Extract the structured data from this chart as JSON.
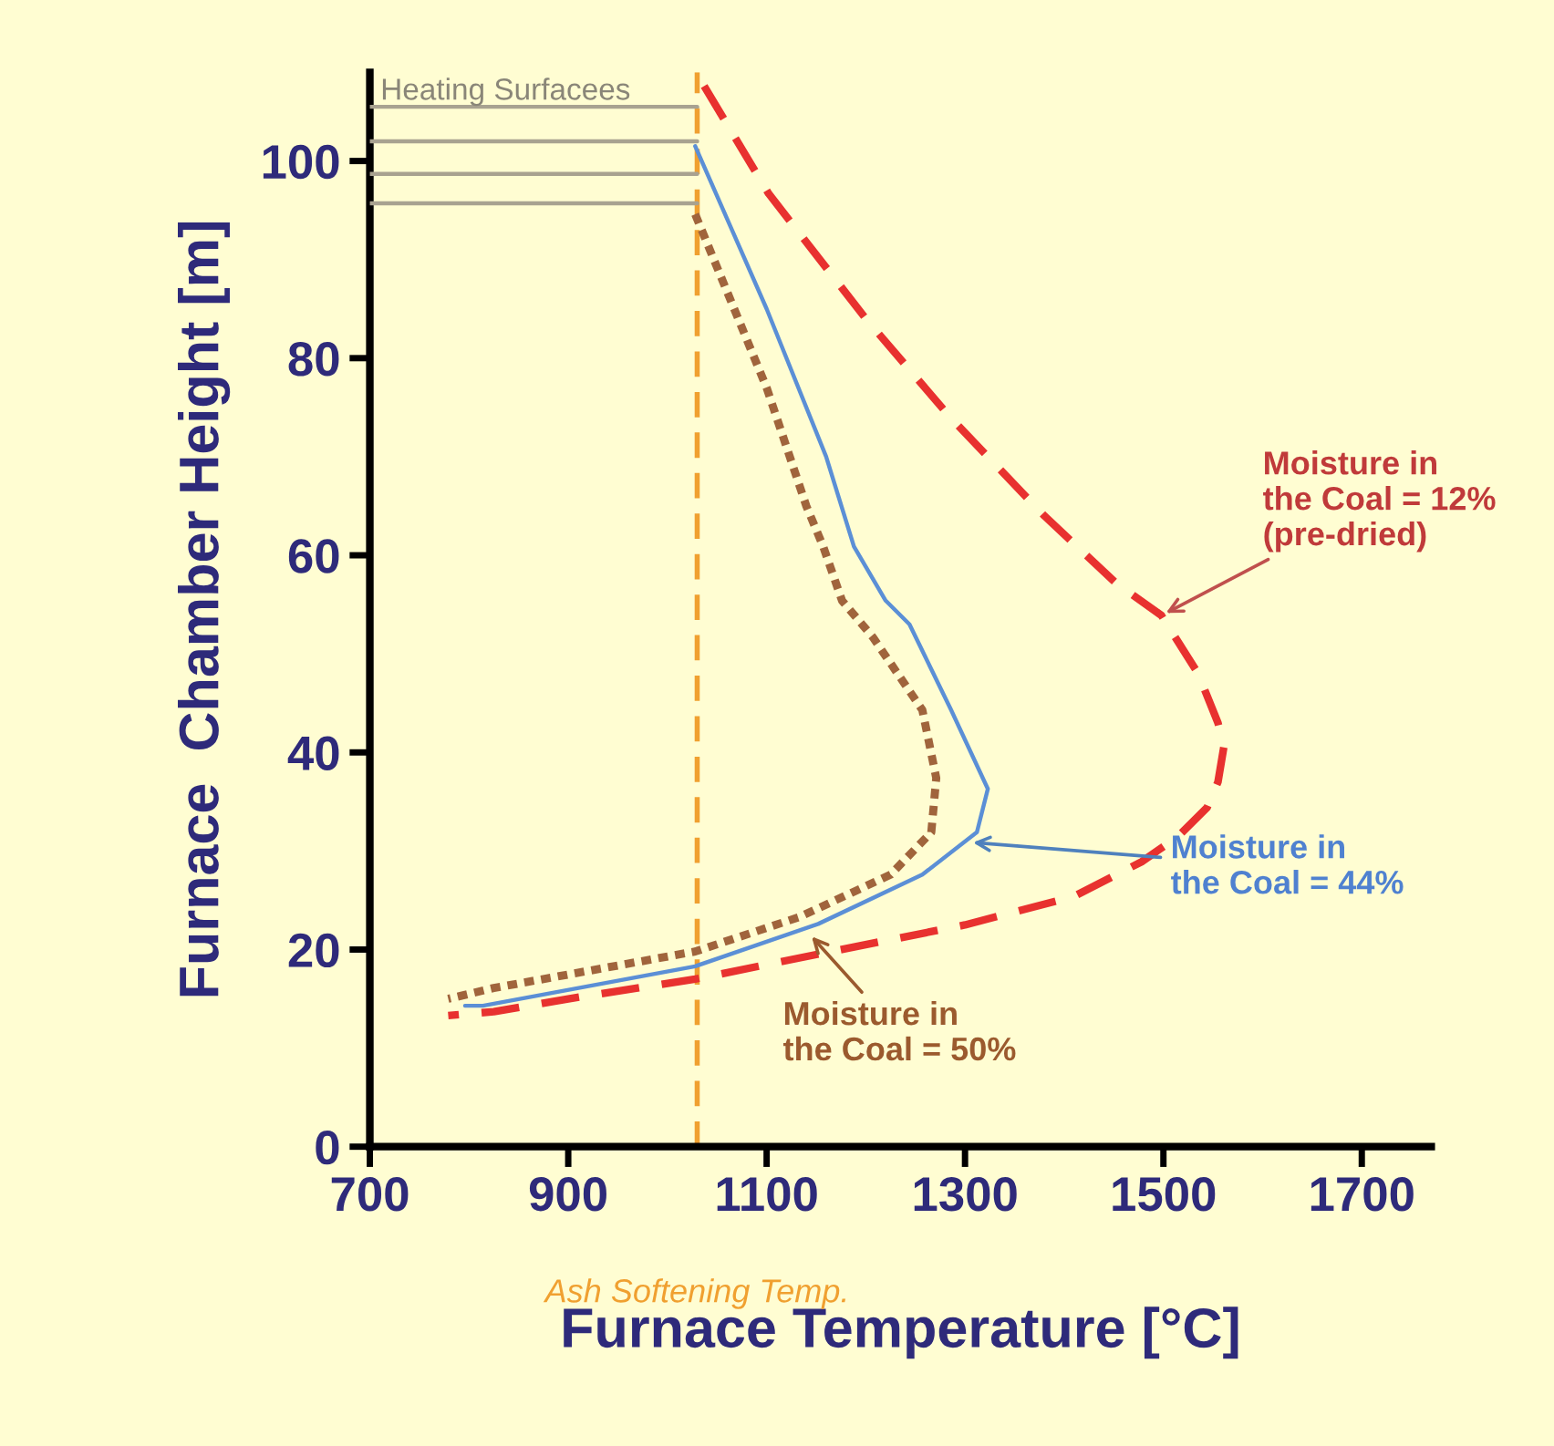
{
  "chart_data": {
    "type": "line",
    "xlabel": "Furnace Temperature [°C]",
    "ylabel": "Furnace  Chamber Height [m]",
    "xlim": [
      700,
      1770
    ],
    "ylim": [
      0,
      109
    ],
    "xticks": [
      700,
      900,
      1100,
      1300,
      1500,
      1700
    ],
    "yticks": [
      0,
      20,
      40,
      60,
      80,
      100
    ],
    "grid": false,
    "legend": false,
    "series": [
      {
        "color": "#a8a290",
        "line_style": "solid",
        "x": [
          700,
          1030
        ],
        "values": [
          105.5,
          105.5
        ]
      },
      {
        "color": "#a8a290",
        "line_style": "solid",
        "x": [
          700,
          1030
        ],
        "values": [
          102,
          102
        ]
      },
      {
        "color": "#a8a290",
        "line_style": "solid",
        "x": [
          700,
          1030
        ],
        "values": [
          98.7,
          98.7
        ]
      },
      {
        "color": "#a8a290",
        "line_style": "solid",
        "x": [
          700,
          1030
        ],
        "values": [
          95.7,
          95.7
        ]
      },
      {
        "color": "#e8312f",
        "line_style": "dashed",
        "x": [
          1037,
          1102,
          1200,
          1286,
          1380,
          1452,
          1498,
          1535,
          1555,
          1561,
          1555,
          1544,
          1515,
          1478,
          1410,
          1300,
          1165,
          1028,
          900,
          825,
          779
        ],
        "values": [
          107.6,
          96.7,
          84,
          73.9,
          64,
          57.2,
          53.9,
          48,
          43,
          40.6,
          37,
          34.4,
          31.5,
          28.9,
          25.4,
          22.5,
          19.8,
          17.0,
          15,
          13.7,
          13.3
        ]
      },
      {
        "color": "#5b8fd6",
        "line_style": "solid",
        "x": [
          1028,
          1100,
          1160,
          1188,
          1220,
          1244,
          1286,
          1323,
          1312,
          1257,
          1152,
          1028,
          814,
          796
        ],
        "values": [
          101.5,
          85,
          70,
          60.9,
          55.4,
          53,
          44.3,
          36.3,
          31.9,
          27.6,
          22.6,
          18.3,
          14.3,
          14.3
        ]
      },
      {
        "color": "#a0643c",
        "line_style": "dotted",
        "x": [
          1028,
          1100,
          1140,
          1157,
          1176,
          1207,
          1257,
          1271,
          1266,
          1225,
          1133,
          1028,
          825,
          779
        ],
        "values": [
          94.6,
          77,
          65,
          60.9,
          55.4,
          51.7,
          44.3,
          37.4,
          31.9,
          27.6,
          23.3,
          19.8,
          16.1,
          15.0
        ]
      }
    ],
    "ref_lines": [
      {
        "axis": "x",
        "value": 1030,
        "label": "Ash Softening Temp.",
        "color": "#f0a030",
        "line_style": "dashed"
      }
    ],
    "annotations": [
      {
        "text": "Heating Surfacees"
      },
      {
        "text": "Moisture in\nthe Coal = 12%\n(pre-dried)",
        "x": 1498,
        "y": 53.9
      },
      {
        "text": "Moisture in\nthe Coal = 44%",
        "x": 1303,
        "y": 30.9
      },
      {
        "text": "Moisture in\nthe Coal = 50%",
        "x": 1142,
        "y": 21.7
      }
    ]
  }
}
